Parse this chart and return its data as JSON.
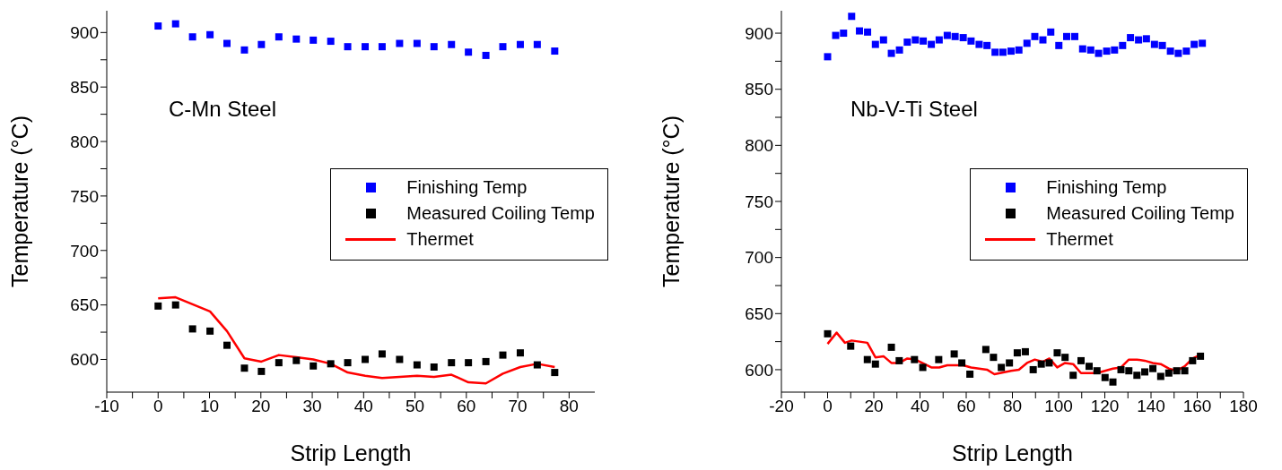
{
  "chart_data": [
    {
      "type": "scatter",
      "xlabel": "Strip Length",
      "ylabel": "Temperature (°C)",
      "annotations": [
        "C-Mn Steel"
      ],
      "xlim": [
        -10,
        85
      ],
      "xticks": [
        -10,
        {
          "value": -5,
          "label": null
        },
        0,
        {
          "value": 5,
          "label": null
        },
        10,
        {
          "value": 15,
          "label": null
        },
        20,
        {
          "value": 25,
          "label": null
        },
        30,
        {
          "value": 35,
          "label": null
        },
        40,
        {
          "value": 45,
          "label": null
        },
        50,
        {
          "value": 55,
          "label": null
        },
        60,
        {
          "value": 65,
          "label": null
        },
        70,
        {
          "value": 75,
          "label": null
        },
        80
      ],
      "ylim": [
        570,
        920
      ],
      "yticks": [
        600,
        {
          "value": 625,
          "label": null
        },
        650,
        {
          "value": 675,
          "label": null
        },
        700,
        {
          "value": 725,
          "label": null
        },
        750,
        {
          "value": 775,
          "label": null
        },
        800,
        {
          "value": 825,
          "label": null
        },
        850,
        {
          "value": 875,
          "label": null
        },
        900
      ],
      "grid": false,
      "legend": "right",
      "x": [
        0,
        3.4,
        6.7,
        10.1,
        13.4,
        16.8,
        20.1,
        23.5,
        26.9,
        30.2,
        33.6,
        36.9,
        40.3,
        43.6,
        47,
        50.4,
        53.7,
        57.1,
        60.4,
        63.8,
        67.1,
        70.5,
        73.8,
        77.2
      ],
      "series": [
        {
          "name": "Finishing Temp",
          "marker": "square",
          "color": "#0000ff",
          "values": [
            906,
            908,
            896,
            898,
            890,
            884,
            889,
            896,
            894,
            893,
            892,
            887,
            887,
            887,
            890,
            890,
            887,
            889,
            882,
            879,
            887,
            889,
            889,
            883
          ]
        },
        {
          "name": "Measured Coiling Temp",
          "marker": "square",
          "color": "#000000",
          "values": [
            649,
            650,
            628,
            626,
            613,
            592,
            589,
            597,
            599,
            594,
            596,
            597,
            600,
            605,
            600,
            595,
            593,
            597,
            597,
            598,
            604,
            606,
            595,
            588
          ]
        },
        {
          "name": "Thermet",
          "type": "line",
          "color": "#ff0000",
          "line_style": "solid",
          "values": [
            656,
            657,
            644,
            626,
            601,
            598,
            604,
            602,
            600,
            596,
            588,
            585,
            583,
            584,
            585,
            584,
            586,
            579,
            578,
            587,
            593,
            596,
            593
          ],
          "x": [
            0,
            3.4,
            10.1,
            13.4,
            16.8,
            20.1,
            23.5,
            26.9,
            30.2,
            33.6,
            36.9,
            40.3,
            43.6,
            47,
            50.4,
            53.7,
            57.1,
            60.4,
            63.8,
            67.1,
            70.5,
            73.8,
            77.2
          ]
        }
      ]
    },
    {
      "type": "scatter",
      "xlabel": "Strip Length",
      "ylabel": "Temperature (°C)",
      "annotations": [
        "Nb-V-Ti Steel"
      ],
      "xlim": [
        -20,
        180
      ],
      "xticks": [
        -20,
        {
          "value": -10,
          "label": null
        },
        0,
        {
          "value": 10,
          "label": null
        },
        20,
        {
          "value": 30,
          "label": null
        },
        40,
        {
          "value": 50,
          "label": null
        },
        60,
        {
          "value": 70,
          "label": null
        },
        80,
        {
          "value": 90,
          "label": null
        },
        100,
        {
          "value": 110,
          "label": null
        },
        120,
        {
          "value": 130,
          "label": null
        },
        140,
        {
          "value": 150,
          "label": null
        },
        160,
        {
          "value": 170,
          "label": null
        },
        180
      ],
      "ylim": [
        580,
        920
      ],
      "yticks": [
        600,
        {
          "value": 625,
          "label": null
        },
        650,
        {
          "value": 675,
          "label": null
        },
        700,
        {
          "value": 725,
          "label": null
        },
        750,
        {
          "value": 775,
          "label": null
        },
        800,
        {
          "value": 825,
          "label": null
        },
        850,
        {
          "value": 875,
          "label": null
        },
        900
      ],
      "grid": false,
      "legend": "right",
      "series": [
        {
          "name": "Finishing Temp",
          "marker": "square",
          "color": "#0000ff",
          "x": [
            0,
            3.5,
            6.9,
            10.4,
            13.8,
            17.3,
            20.7,
            24.2,
            27.6,
            31.1,
            34.5,
            38,
            41.4,
            44.9,
            48.3,
            51.8,
            55.2,
            58.7,
            62.1,
            65.6,
            69,
            72.5,
            75.9,
            79.4,
            82.8,
            86.3,
            89.7,
            93.2,
            96.6,
            100.1,
            103.5,
            107,
            110.4,
            113.9,
            117.3,
            120.8,
            124.2,
            127.7,
            131.1,
            134.6,
            138,
            141.5,
            144.9,
            148.4,
            151.8,
            155.3,
            158.7,
            162.2
          ],
          "values": [
            879,
            898,
            900,
            915,
            902,
            901,
            890,
            894,
            882,
            885,
            892,
            894,
            893,
            890,
            894,
            898,
            897,
            896,
            893,
            890,
            889,
            883,
            883,
            884,
            885,
            891,
            897,
            894,
            901,
            889,
            897,
            897,
            886,
            885,
            882,
            884,
            885,
            889,
            896,
            894,
            895,
            890,
            889,
            884,
            882,
            884,
            890,
            891
          ]
        },
        {
          "name": "Measured Coiling Temp",
          "marker": "square",
          "color": "#000000",
          "x": [
            0,
            10,
            17.2,
            20.7,
            27.6,
            31,
            37.6,
            41.2,
            48.1,
            54.8,
            58.1,
            61.6,
            68.5,
            71.8,
            75.2,
            78.7,
            82.1,
            85.6,
            89,
            92.5,
            95.9,
            99.4,
            102.8,
            106.3,
            109.7,
            113.2,
            116.6,
            120.1,
            123.5,
            127,
            130.4,
            133.9,
            137.3,
            140.8,
            144.2,
            147.7,
            151.1,
            154.6,
            158,
            161.4
          ],
          "values": [
            632,
            621,
            609,
            605,
            620,
            608,
            609,
            602,
            609,
            614,
            606,
            596,
            618,
            611,
            602,
            606,
            615,
            616,
            600,
            605,
            606,
            615,
            611,
            595,
            608,
            603,
            599,
            593,
            589,
            600,
            599,
            595,
            598,
            601,
            594,
            597,
            599,
            599,
            608,
            612
          ]
        },
        {
          "name": "Thermet",
          "type": "line",
          "color": "#ff0000",
          "line_style": "solid",
          "x": [
            0,
            3.9,
            7.5,
            10.4,
            17.2,
            20.7,
            24.2,
            27.6,
            31,
            34.5,
            38,
            44.9,
            48.3,
            51.8,
            58.7,
            62.1,
            69,
            72.2,
            79.4,
            82.8,
            86.3,
            89.7,
            93.2,
            96,
            99.4,
            102.8,
            106.3,
            109.7,
            116.6,
            123.5,
            127,
            130.4,
            133.9,
            137.3,
            140.8,
            144.2,
            147.7,
            151.1,
            154.6,
            158,
            161.2
          ],
          "values": [
            623,
            633,
            624,
            626,
            624,
            611,
            612,
            606,
            606,
            610,
            609,
            602,
            602,
            604,
            604,
            602,
            600,
            596,
            599,
            600,
            606,
            609,
            607,
            610,
            602,
            606,
            605,
            597,
            597,
            601,
            602,
            609,
            609,
            608,
            606,
            605,
            601,
            599,
            603,
            610,
            613
          ]
        }
      ]
    }
  ]
}
